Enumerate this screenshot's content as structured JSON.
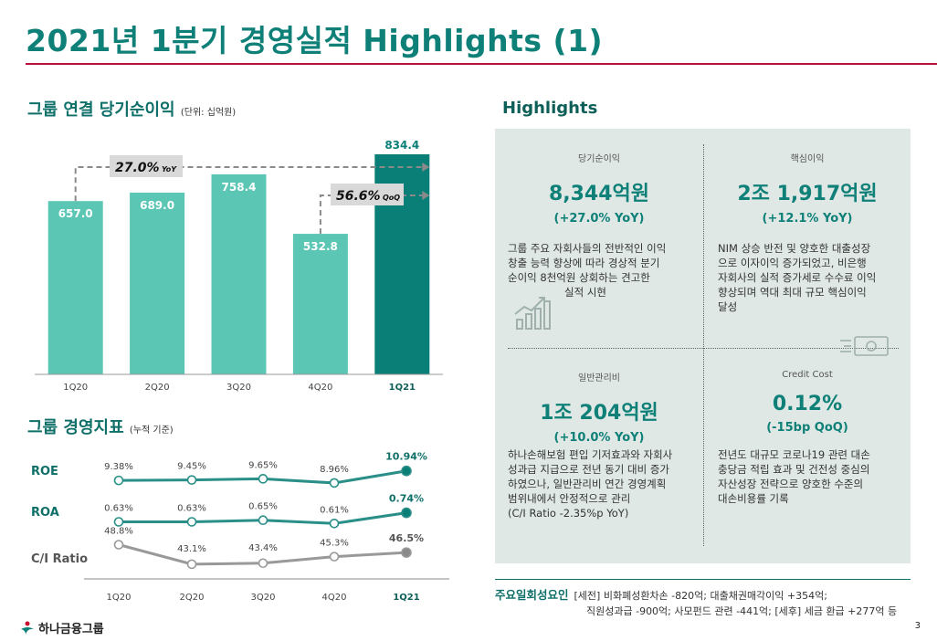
{
  "title": "2021년 1분기 경영실적 Highlights (1)",
  "income_section": {
    "title": "그룹 연결 당기순이익",
    "unit": "(단위: 십억원)"
  },
  "ratio_section": {
    "title": "그룹 경영지표",
    "note": "(누적 기준)"
  },
  "highlights_title": "Highlights",
  "highlights": [
    {
      "label": "당기순이익",
      "value": "8,344억원",
      "change": "(+27.0% YoY)",
      "desc": [
        "그룹 주요 자회사들의 전반적인 이익",
        "창출 능력 향상에 따라 경상적 분기",
        "순이익 8천억원 상회하는 견고한",
        "실적 시현"
      ]
    },
    {
      "label": "핵심이익",
      "value": "2조 1,917억원",
      "change": "(+12.1% YoY)",
      "desc": [
        "NIM 상승 반전 및 양호한 대출성장",
        "으로 이자이익 증가되었고, 비은행",
        "자회사의 실적 증가세로 수수료 이익",
        "향상되며 역대 최대 규모 핵심이익",
        "달성"
      ]
    },
    {
      "label": "일반관리비",
      "value": "1조 204억원",
      "change": "(+10.0% YoY)",
      "desc": [
        "하나손해보험 편입 기저효과와 자회사",
        "성과급 지급으로 전년 동기 대비 증가",
        "하였으나, 일반관리비 연간 경영계획",
        "범위내에서 안정적으로 관리",
        "(C/I Ratio -2.35%p YoY)"
      ]
    },
    {
      "label": "Credit Cost",
      "value": "0.12%",
      "change": "(-15bp QoQ)",
      "desc": [
        "전년도 대규모 코로나19 관련 대손",
        "충당금 적립 효과 및 건전성 중심의",
        "자산성장 전략으로 양호한 수준의",
        "대손비용률 기록"
      ]
    }
  ],
  "factors": {
    "label": "주요일회성요인",
    "line1": "[세전] 비화폐성환차손 -820억; 대출채권매각이익 +354억;",
    "line2": "직원성과급 -900억; 사모펀드 관련 -441억; [세후] 세금 환급 +277억 등"
  },
  "footer": {
    "logo": "하나금융그룹",
    "page": "3"
  },
  "colors": {
    "teal": "#5cc6b5",
    "dark_teal": "#0a7f78",
    "brand": "#0f8078",
    "red": "#b8123a",
    "gray": "#8a8a8a"
  },
  "chart_data": [
    {
      "type": "bar",
      "title": "그룹 연결 당기순이익",
      "categories": [
        "1Q20",
        "2Q20",
        "3Q20",
        "4Q20",
        "1Q21"
      ],
      "values": [
        657.0,
        689.0,
        758.4,
        532.8,
        834.4
      ],
      "value_labels": [
        "657.0",
        "689.0",
        "758.4",
        "532.8",
        "834.4"
      ],
      "annotations": [
        {
          "text": "27.0%",
          "suffix": "YoY"
        },
        {
          "text": "56.6%",
          "suffix": "QoQ"
        }
      ],
      "ylim": [
        0,
        900
      ]
    },
    {
      "type": "line",
      "title": "그룹 경영지표",
      "categories": [
        "1Q20",
        "2Q20",
        "3Q20",
        "4Q20",
        "1Q21"
      ],
      "series": [
        {
          "name": "ROE",
          "values": [
            9.38,
            9.45,
            9.65,
            8.96,
            10.94
          ],
          "labels": [
            "9.38%",
            "9.45%",
            "9.65%",
            "8.96%",
            "10.94%"
          ]
        },
        {
          "name": "ROA",
          "values": [
            0.63,
            0.63,
            0.65,
            0.61,
            0.74
          ],
          "labels": [
            "0.63%",
            "0.63%",
            "0.65%",
            "0.61%",
            "0.74%"
          ]
        },
        {
          "name": "C/I Ratio",
          "values": [
            48.8,
            43.1,
            43.4,
            45.3,
            46.5
          ],
          "labels": [
            "48.8%",
            "43.1%",
            "43.4%",
            "45.3%",
            "46.5%"
          ]
        }
      ]
    }
  ]
}
